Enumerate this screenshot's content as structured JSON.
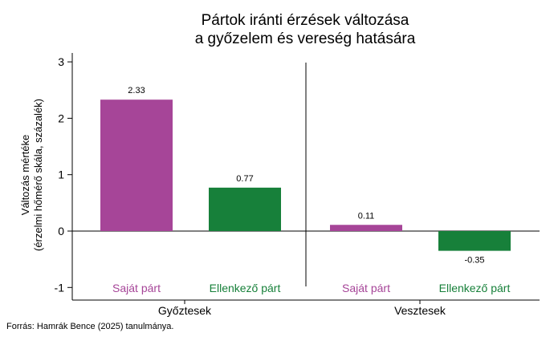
{
  "chart_data": {
    "type": "bar",
    "title_lines": [
      "Pártok iránti érzések változása",
      "a győzelem és vereség hatására"
    ],
    "ylabel_lines": [
      "Változás mértéke",
      "(érzelmi hőmérő skála, százalék)"
    ],
    "ylim": [
      -1.4,
      3.15
    ],
    "yticks": [
      -1,
      0,
      1,
      2,
      3
    ],
    "groups": [
      {
        "name": "Győztesek",
        "bars": [
          {
            "category": "Saját párt",
            "value": 2.33,
            "label": "2.33"
          },
          {
            "category": "Ellenkező párt",
            "value": 0.77,
            "label": "0.77"
          }
        ]
      },
      {
        "name": "Vesztesek",
        "bars": [
          {
            "category": "Saját párt",
            "value": 0.11,
            "label": "0.11"
          },
          {
            "category": "Ellenkező párt",
            "value": -0.35,
            "label": "-0.35"
          }
        ]
      }
    ],
    "category_colors": {
      "Saját párt": "#a64598",
      "Ellenkező párt": "#17803a"
    },
    "grid": false,
    "legend": "none"
  },
  "source_text": "Forrás: Hamrák Bence (2025) tanulmánya."
}
